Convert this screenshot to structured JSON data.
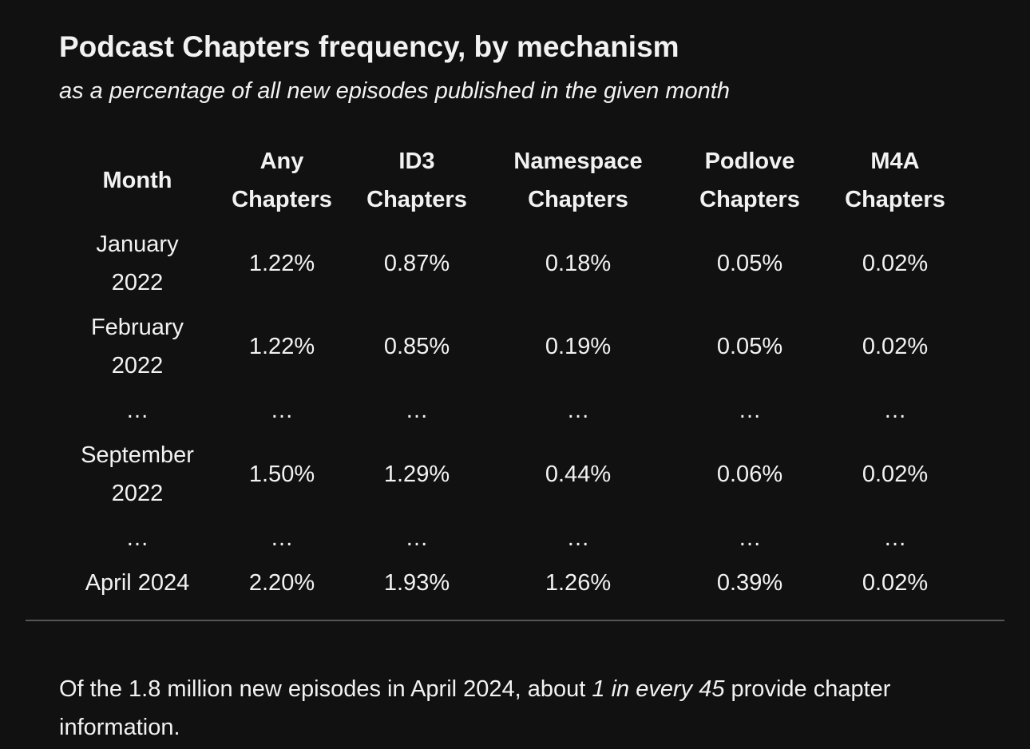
{
  "chart_data": {
    "type": "table",
    "title": "Podcast Chapters frequency, by mechanism",
    "subtitle": "as a percentage of all new episodes published in the given month",
    "columns": [
      {
        "line1": "Month",
        "line2": ""
      },
      {
        "line1": "Any",
        "line2": "Chapters"
      },
      {
        "line1": "ID3",
        "line2": "Chapters"
      },
      {
        "line1": "Namespace",
        "line2": "Chapters"
      },
      {
        "line1": "Podlove",
        "line2": "Chapters"
      },
      {
        "line1": "M4A",
        "line2": "Chapters"
      }
    ],
    "rows": [
      {
        "month_line1": "January",
        "month_line2": "2022",
        "any": "1.22%",
        "id3": "0.87%",
        "namespace": "0.18%",
        "podlove": "0.05%",
        "m4a": "0.02%"
      },
      {
        "month_line1": "February",
        "month_line2": "2022",
        "any": "1.22%",
        "id3": "0.85%",
        "namespace": "0.19%",
        "podlove": "0.05%",
        "m4a": "0.02%"
      },
      {
        "month_line1": "…",
        "month_line2": "",
        "any": "…",
        "id3": "…",
        "namespace": "…",
        "podlove": "…",
        "m4a": "…"
      },
      {
        "month_line1": "September",
        "month_line2": "2022",
        "any": "1.50%",
        "id3": "1.29%",
        "namespace": "0.44%",
        "podlove": "0.06%",
        "m4a": "0.02%"
      },
      {
        "month_line1": "…",
        "month_line2": "",
        "any": "…",
        "id3": "…",
        "namespace": "…",
        "podlove": "…",
        "m4a": "…"
      },
      {
        "month_line1": "April 2024",
        "month_line2": "",
        "any": "2.20%",
        "id3": "1.93%",
        "namespace": "1.26%",
        "podlove": "0.39%",
        "m4a": "0.02%"
      }
    ]
  },
  "footnote": {
    "before": "Of the 1.8 million new episodes in April 2024, about ",
    "emphasis": "1 in every 45",
    "after": " provide chapter information."
  },
  "colors": {
    "background": "#111111",
    "text": "#f2f2f2",
    "divider": "#555555"
  }
}
